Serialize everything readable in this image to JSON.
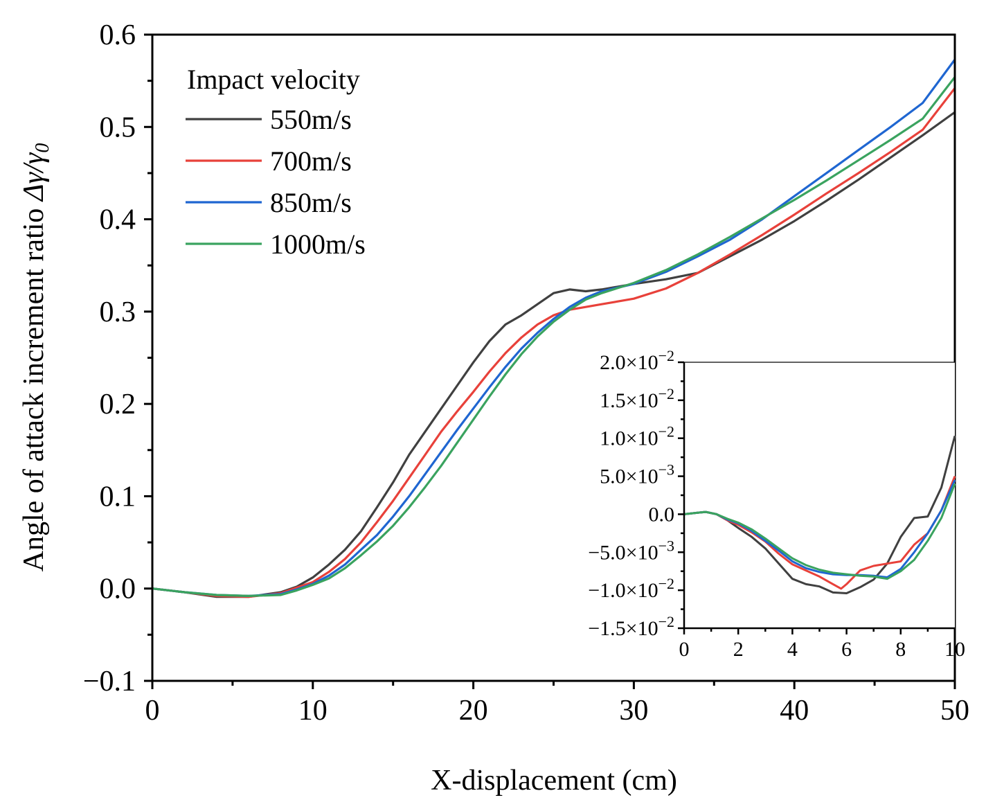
{
  "chart_data": [
    {
      "type": "line",
      "id": "main",
      "xlabel": "X-displacement (cm)",
      "ylabel_prefix": "Angle of attack increment ratio ",
      "ylabel_symbol": "Δγ/γ",
      "ylabel_subscript": "0",
      "xlim": [
        0,
        50
      ],
      "ylim": [
        -0.1,
        0.6
      ],
      "xticks": [
        0,
        10,
        20,
        30,
        40,
        50
      ],
      "xtick_labels": [
        "0",
        "10",
        "20",
        "30",
        "40",
        "50"
      ],
      "yticks": [
        -0.1,
        0.0,
        0.1,
        0.2,
        0.3,
        0.4,
        0.5,
        0.6
      ],
      "ytick_labels": [
        "−0.1",
        "0.0",
        "0.1",
        "0.2",
        "0.3",
        "0.4",
        "0.5",
        "0.6"
      ],
      "legend": {
        "title": "Impact velocity",
        "placement": "top-left"
      },
      "series": [
        {
          "name": "550m/s",
          "color": "#404040",
          "x": [
            0,
            2,
            4,
            6,
            8,
            9,
            10,
            11,
            12,
            13,
            14,
            15,
            16,
            17,
            18,
            19,
            20,
            21,
            22,
            23,
            24,
            25,
            26,
            27,
            28,
            29,
            30,
            32,
            34,
            36,
            38,
            40,
            42,
            44,
            46,
            48,
            50
          ],
          "y": [
            0,
            -0.004,
            -0.009,
            -0.009,
            -0.004,
            0.002,
            0.012,
            0.026,
            0.042,
            0.062,
            0.088,
            0.115,
            0.145,
            0.17,
            0.195,
            0.22,
            0.245,
            0.268,
            0.286,
            0.296,
            0.308,
            0.32,
            0.324,
            0.322,
            0.324,
            0.327,
            0.33,
            0.335,
            0.342,
            0.36,
            0.378,
            0.398,
            0.42,
            0.443,
            0.467,
            0.491,
            0.516
          ]
        },
        {
          "name": "700m/s",
          "color": "#e8413a",
          "x": [
            0,
            2,
            4,
            6,
            8,
            9,
            10,
            11,
            12,
            13,
            14,
            15,
            16,
            17,
            18,
            19,
            20,
            21,
            22,
            23,
            24,
            25,
            26,
            27,
            28,
            30,
            32,
            34,
            36,
            38,
            40,
            42,
            44,
            46,
            48,
            50
          ],
          "y": [
            0,
            -0.004,
            -0.008,
            -0.009,
            -0.005,
            0.001,
            0.007,
            0.018,
            0.032,
            0.05,
            0.072,
            0.095,
            0.12,
            0.145,
            0.17,
            0.192,
            0.213,
            0.235,
            0.255,
            0.272,
            0.286,
            0.296,
            0.302,
            0.305,
            0.308,
            0.314,
            0.325,
            0.342,
            0.362,
            0.383,
            0.405,
            0.428,
            0.45,
            0.473,
            0.497,
            0.542
          ]
        },
        {
          "name": "850m/s",
          "color": "#1f66d1",
          "x": [
            0,
            2,
            4,
            6,
            8,
            9,
            10,
            11,
            12,
            13,
            14,
            15,
            16,
            17,
            18,
            19,
            20,
            21,
            22,
            23,
            24,
            25,
            26,
            27,
            28,
            30,
            32,
            34,
            36,
            38,
            40,
            42,
            44,
            46,
            48,
            50
          ],
          "y": [
            0,
            -0.004,
            -0.007,
            -0.008,
            -0.006,
            -0.001,
            0.005,
            0.014,
            0.026,
            0.042,
            0.058,
            0.078,
            0.1,
            0.124,
            0.148,
            0.172,
            0.195,
            0.218,
            0.24,
            0.26,
            0.277,
            0.292,
            0.305,
            0.315,
            0.322,
            0.33,
            0.343,
            0.36,
            0.378,
            0.4,
            0.425,
            0.45,
            0.475,
            0.5,
            0.526,
            0.573
          ]
        },
        {
          "name": "1000m/s",
          "color": "#3aa35f",
          "x": [
            0,
            2,
            4,
            6,
            8,
            9,
            10,
            11,
            12,
            13,
            14,
            15,
            16,
            17,
            18,
            19,
            20,
            21,
            22,
            23,
            24,
            25,
            26,
            27,
            28,
            30,
            32,
            34,
            36,
            38,
            40,
            42,
            44,
            46,
            48,
            50
          ],
          "y": [
            0,
            -0.004,
            -0.007,
            -0.008,
            -0.007,
            -0.002,
            0.004,
            0.011,
            0.022,
            0.036,
            0.051,
            0.068,
            0.088,
            0.11,
            0.133,
            0.158,
            0.183,
            0.208,
            0.232,
            0.254,
            0.273,
            0.289,
            0.302,
            0.313,
            0.32,
            0.331,
            0.345,
            0.362,
            0.381,
            0.401,
            0.421,
            0.442,
            0.464,
            0.486,
            0.509,
            0.554
          ]
        }
      ]
    },
    {
      "type": "line",
      "id": "inset",
      "xlim": [
        0,
        10
      ],
      "ylim": [
        -0.015,
        0.02
      ],
      "xticks": [
        0,
        2,
        4,
        6,
        8,
        10
      ],
      "xtick_labels": [
        "0",
        "2",
        "4",
        "6",
        "8",
        "10"
      ],
      "yticks": [
        -0.015,
        -0.01,
        -0.005,
        0.0,
        0.005,
        0.01,
        0.015,
        0.02
      ],
      "ytick_mantissas": [
        "−1.5×10",
        "−1.0×10",
        "−5.0×10",
        "0.0",
        "5.0×10",
        "1.0×10",
        "1.5×10",
        "2.0×10"
      ],
      "ytick_exponents": [
        "−2",
        "−2",
        "−3",
        "",
        "−3",
        "−2",
        "−2",
        "−2"
      ],
      "series": [
        {
          "name": "550m/s",
          "color": "#404040",
          "x": [
            0,
            0.5,
            0.8,
            1.2,
            1.6,
            2.0,
            2.5,
            3.0,
            3.5,
            4.0,
            4.5,
            5.0,
            5.5,
            6.0,
            6.5,
            7.0,
            7.5,
            8.0,
            8.5,
            9.0,
            9.5,
            10.0
          ],
          "y": [
            0,
            0.0002,
            0.0003,
            0,
            -0.0008,
            -0.0018,
            -0.003,
            -0.0045,
            -0.0065,
            -0.0085,
            -0.0092,
            -0.0095,
            -0.0103,
            -0.0104,
            -0.0096,
            -0.0086,
            -0.0065,
            -0.003,
            -0.0005,
            -0.0003,
            0.0035,
            0.0103
          ]
        },
        {
          "name": "700m/s",
          "color": "#e8413a",
          "x": [
            0,
            0.5,
            0.8,
            1.2,
            1.6,
            2.0,
            2.5,
            3.0,
            3.5,
            4.0,
            4.5,
            5.0,
            5.5,
            5.8,
            6.0,
            6.5,
            7.0,
            7.5,
            8.0,
            8.5,
            9.0,
            9.5,
            10.0
          ],
          "y": [
            0,
            0.0002,
            0.0003,
            0,
            -0.0008,
            -0.0014,
            -0.0024,
            -0.0036,
            -0.0052,
            -0.0066,
            -0.0074,
            -0.0082,
            -0.0092,
            -0.0098,
            -0.0092,
            -0.0074,
            -0.0068,
            -0.0065,
            -0.0062,
            -0.004,
            -0.0025,
            0.0005,
            0.005
          ]
        },
        {
          "name": "850m/s",
          "color": "#1f66d1",
          "x": [
            0,
            0.5,
            0.8,
            1.2,
            1.6,
            2.0,
            2.5,
            3.0,
            3.5,
            4.0,
            4.5,
            5.0,
            5.5,
            6.0,
            6.5,
            7.0,
            7.5,
            8.0,
            8.5,
            9.0,
            9.5,
            10.0
          ],
          "y": [
            0,
            0.0002,
            0.0003,
            0,
            -0.0007,
            -0.0012,
            -0.0022,
            -0.0035,
            -0.0048,
            -0.0062,
            -0.0071,
            -0.0076,
            -0.0079,
            -0.008,
            -0.008,
            -0.0081,
            -0.0083,
            -0.0072,
            -0.005,
            -0.0025,
            0.0005,
            0.0045
          ]
        },
        {
          "name": "1000m/s",
          "color": "#3aa35f",
          "x": [
            0,
            0.5,
            0.8,
            1.2,
            1.6,
            2.0,
            2.5,
            3.0,
            3.5,
            4.0,
            4.5,
            5.0,
            5.5,
            6.0,
            6.5,
            7.0,
            7.5,
            8.0,
            8.5,
            9.0,
            9.5,
            10.0
          ],
          "y": [
            0,
            0.0002,
            0.0003,
            0,
            -0.0006,
            -0.0011,
            -0.002,
            -0.0032,
            -0.0045,
            -0.0058,
            -0.0067,
            -0.0073,
            -0.0077,
            -0.0079,
            -0.0081,
            -0.0082,
            -0.0085,
            -0.0075,
            -0.006,
            -0.0035,
            -0.0005,
            0.004
          ]
        }
      ]
    }
  ]
}
